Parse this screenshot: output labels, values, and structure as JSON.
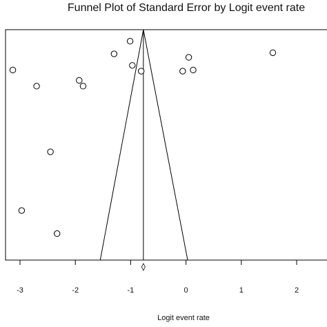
{
  "chart_data": {
    "type": "scatter",
    "title": "Funnel Plot of Standard Error by Logit event rate",
    "xlabel": "Logit event rate",
    "ylabel": "",
    "xlim": [
      -3.25,
      2.4
    ],
    "ylim": [
      0,
      1.0
    ],
    "y_inverted": true,
    "x_ticks": [
      "-3",
      "-2",
      "-1",
      "0",
      "1",
      "2"
    ],
    "grid": false,
    "pooled_estimate": -0.77,
    "funnel_base": [
      -1.55,
      0.03
    ],
    "summary_diamond_x": -0.77,
    "points": [
      {
        "x": -3.13,
        "y": 0.175
      },
      {
        "x": -2.7,
        "y": 0.245
      },
      {
        "x": -1.93,
        "y": 0.22
      },
      {
        "x": -1.86,
        "y": 0.245
      },
      {
        "x": -1.3,
        "y": 0.105
      },
      {
        "x": -1.01,
        "y": 0.05
      },
      {
        "x": -0.97,
        "y": 0.155
      },
      {
        "x": -0.81,
        "y": 0.18
      },
      {
        "x": -0.06,
        "y": 0.18
      },
      {
        "x": 0.05,
        "y": 0.12
      },
      {
        "x": 0.13,
        "y": 0.175
      },
      {
        "x": 1.57,
        "y": 0.1
      },
      {
        "x": -2.45,
        "y": 0.53
      },
      {
        "x": -2.97,
        "y": 0.785
      },
      {
        "x": -2.33,
        "y": 0.885
      }
    ]
  }
}
